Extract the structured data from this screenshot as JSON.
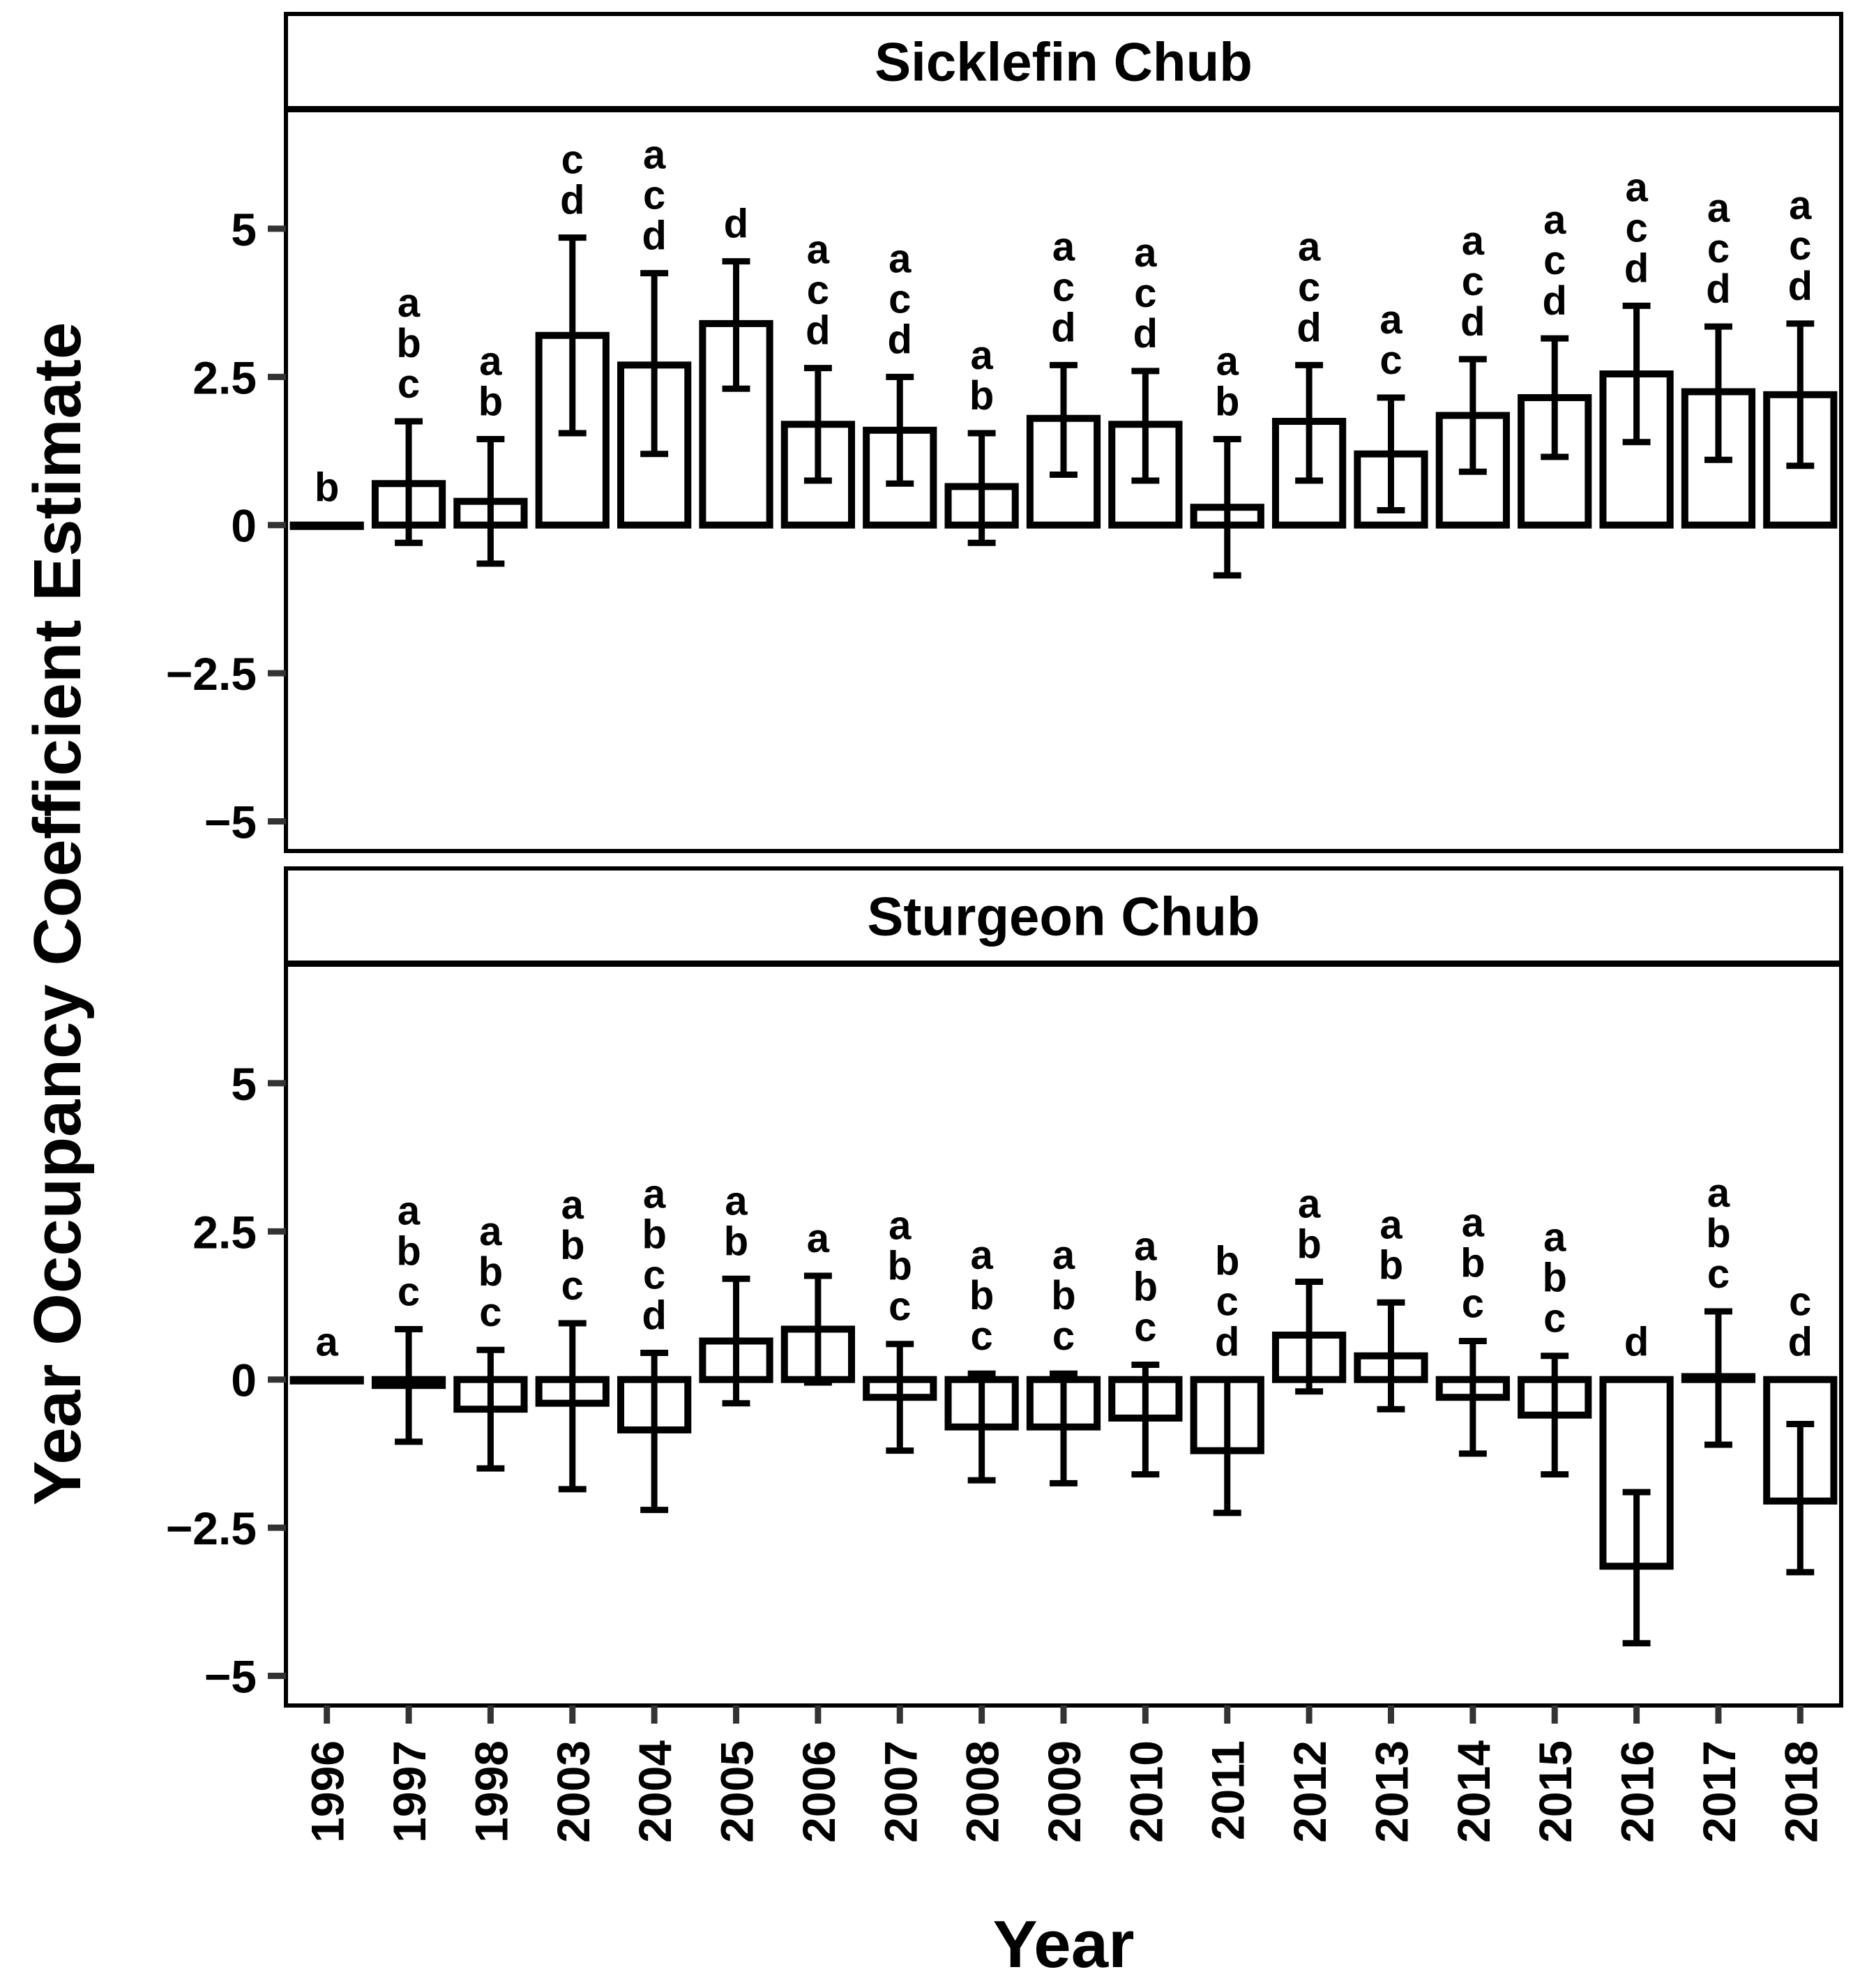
{
  "chart_data": {
    "type": "bar",
    "ylabel": "Year Occupancy Coefficient Estimate",
    "xlabel": "Year",
    "ylim": [
      -5.5,
      7
    ],
    "yticks": [
      5,
      2.5,
      0,
      -2.5,
      -5
    ],
    "ytick_labels": [
      "5",
      "2.5",
      "0",
      "−2.5",
      "−5"
    ],
    "categories": [
      "1996",
      "1997",
      "1998",
      "2003",
      "2004",
      "2005",
      "2006",
      "2007",
      "2008",
      "2009",
      "2010",
      "2011",
      "2012",
      "2013",
      "2014",
      "2015",
      "2016",
      "2017",
      "2018"
    ],
    "panels": [
      {
        "title": "Sicklefin Chub",
        "values": [
          0,
          0.7,
          0.4,
          3.2,
          2.7,
          3.4,
          1.7,
          1.6,
          0.65,
          1.8,
          1.7,
          0.3,
          1.75,
          1.2,
          1.85,
          2.15,
          2.55,
          2.25,
          2.2
        ],
        "lower": [
          0,
          -0.3,
          -0.65,
          1.55,
          1.2,
          2.3,
          0.75,
          0.7,
          -0.3,
          0.85,
          0.75,
          -0.85,
          0.75,
          0.25,
          0.9,
          1.15,
          1.4,
          1.1,
          1.0
        ],
        "upper": [
          0,
          1.75,
          1.45,
          4.85,
          4.25,
          4.45,
          2.65,
          2.5,
          1.55,
          2.7,
          2.6,
          1.45,
          2.7,
          2.15,
          2.8,
          3.15,
          3.7,
          3.35,
          3.4
        ],
        "letters": [
          "b",
          "a b c",
          "a b",
          "c d",
          "a c d",
          "d",
          "a c d",
          "a c d",
          "a b",
          "a c d",
          "a c d",
          "a b",
          "a c d",
          "a c",
          "a c d",
          "a c d",
          "a c d",
          "a c d",
          "a c d"
        ]
      },
      {
        "title": "Sturgeon Chub",
        "values": [
          0,
          -0.1,
          -0.5,
          -0.4,
          -0.85,
          0.65,
          0.85,
          -0.3,
          -0.8,
          -0.8,
          -0.65,
          -1.2,
          0.75,
          0.4,
          -0.3,
          -0.6,
          -3.15,
          0.05,
          -2.05
        ],
        "lower": [
          0,
          -1.05,
          -1.5,
          -1.85,
          -2.2,
          -0.4,
          -0.05,
          -1.2,
          -1.7,
          -1.75,
          -1.6,
          -2.25,
          -0.2,
          -0.5,
          -1.25,
          -1.6,
          -4.45,
          -1.1,
          -3.25
        ],
        "upper": [
          0,
          0.85,
          0.5,
          0.95,
          0.45,
          1.7,
          1.75,
          0.6,
          0.1,
          0.1,
          0.25,
          0.0,
          1.65,
          1.3,
          0.65,
          0.4,
          -1.9,
          1.15,
          -0.75
        ],
        "letters": [
          "a",
          "a b c",
          "a b c",
          "a b c",
          "a b c d",
          "a b",
          "a",
          "a b c",
          "a b c",
          "a b c",
          "a b c",
          "b c d",
          "a b",
          "a b",
          "a b c",
          "a b c",
          "d",
          "a b c",
          "c d"
        ]
      }
    ]
  }
}
